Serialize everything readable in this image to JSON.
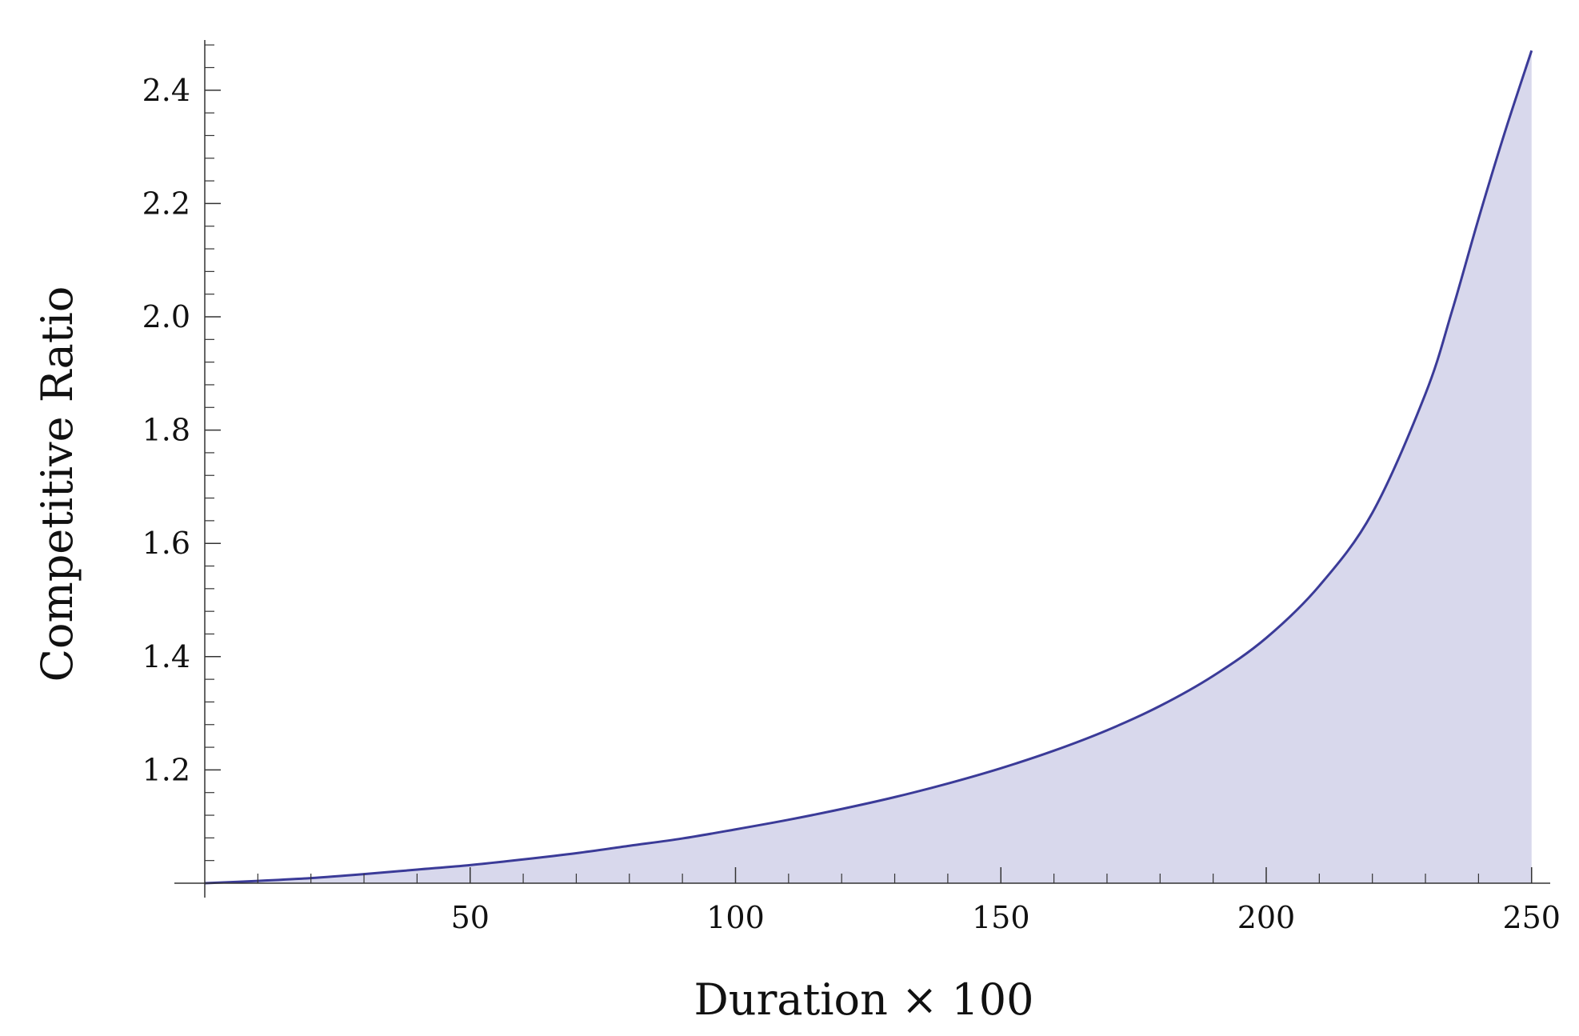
{
  "chart_data": {
    "type": "area",
    "title": "",
    "xlabel": "Duration × 100",
    "ylabel": "Competitive Ratio",
    "xlim": [
      0,
      252
    ],
    "ylim": [
      1.0,
      2.5
    ],
    "x_ticks": [
      50,
      100,
      150,
      200,
      250
    ],
    "y_ticks": [
      1.2,
      1.4,
      1.6,
      1.8,
      2.0,
      2.2,
      2.4
    ],
    "grid": false,
    "legend": "none",
    "colors": {
      "line": "#3b3b98",
      "fill": "#d8d8ec",
      "axis": "#333333"
    },
    "series": [
      {
        "x": [
          0,
          10,
          20,
          30,
          40,
          50,
          60,
          70,
          80,
          90,
          100,
          110,
          120,
          130,
          140,
          150,
          160,
          170,
          180,
          190,
          200,
          210,
          220,
          230,
          235,
          240,
          245,
          250
        ],
        "values": [
          1.0,
          1.004,
          1.009,
          1.016,
          1.024,
          1.032,
          1.042,
          1.053,
          1.066,
          1.079,
          1.095,
          1.112,
          1.131,
          1.152,
          1.176,
          1.203,
          1.234,
          1.27,
          1.313,
          1.366,
          1.433,
          1.525,
          1.654,
          1.864,
          2.01,
          2.173,
          2.327,
          2.47
        ]
      }
    ]
  }
}
